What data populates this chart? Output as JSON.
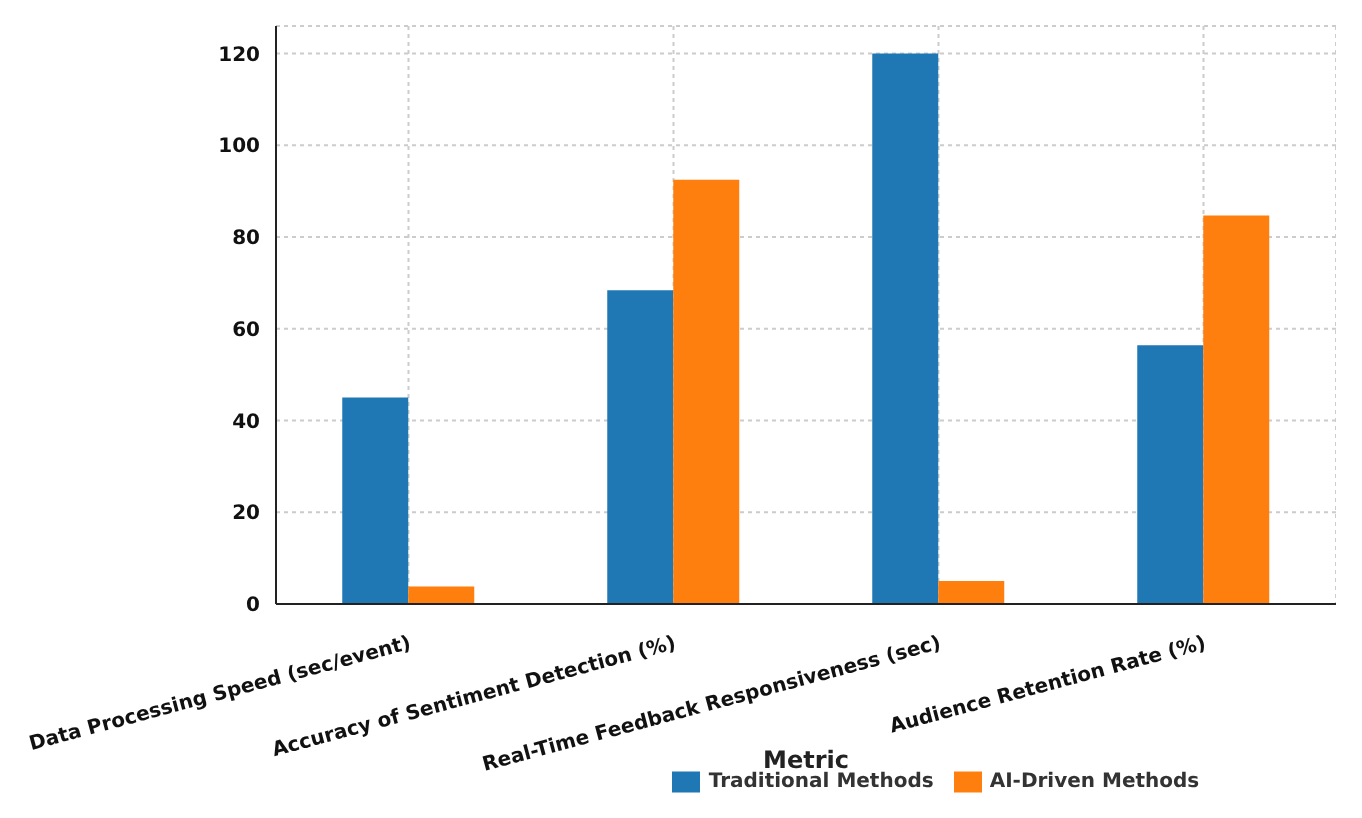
{
  "chart_data": {
    "type": "bar",
    "xlabel": "Metric",
    "categories": [
      "Data Processing Speed (sec/event)",
      "Accuracy of Sentiment Detection (%)",
      "Real-Time Feedback Responsiveness (sec)",
      "Audience Retention Rate (%)"
    ],
    "series": [
      {
        "name": "Traditional Methods",
        "color": "#1f77b4",
        "values": [
          45,
          68.4,
          120,
          56.4
        ]
      },
      {
        "name": "AI-Driven Methods",
        "color": "#ff7f0e",
        "values": [
          3.8,
          92.5,
          5,
          84.7
        ]
      }
    ],
    "ylim": [
      0,
      126
    ],
    "yticks": [
      0,
      20,
      40,
      60,
      80,
      100,
      120
    ],
    "grid": true,
    "legend": "bottom"
  }
}
